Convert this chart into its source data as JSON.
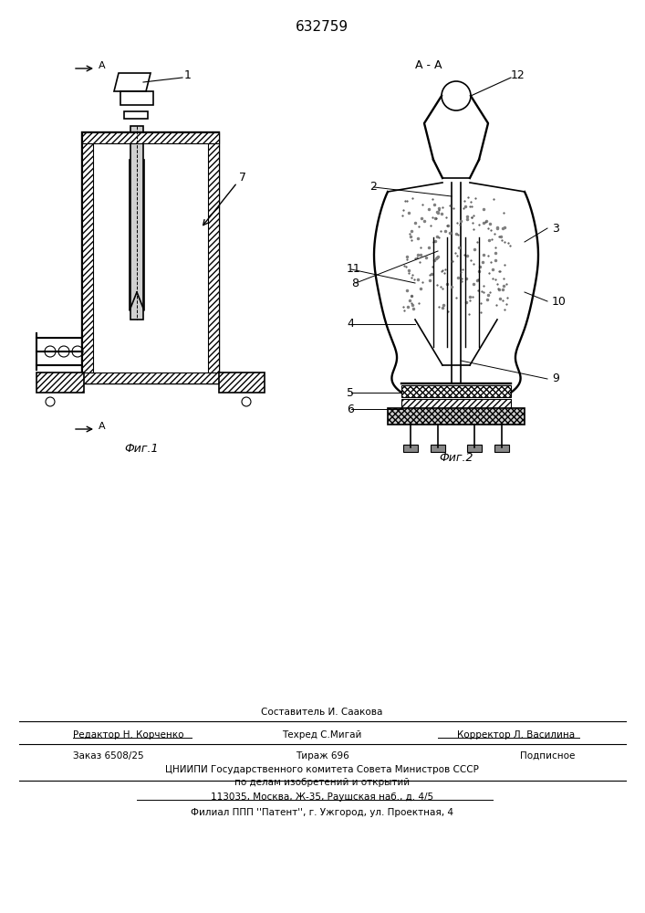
{
  "patent_number": "632759",
  "fig1_label": "Фиг.1",
  "fig2_label": "Фиг.2",
  "section_label": "А - А",
  "footer_line1_center": "Составитель И. Саакова",
  "footer_line2_left": "Редактор Н. Корченко",
  "footer_line2_center": "Техред С.Мигай",
  "footer_line2_right": "Корректор Л. Василина",
  "footer_line3_left": "Заказ 6508/25",
  "footer_line3_center": "Тираж 696",
  "footer_line3_right": "Подписное",
  "footer_line4": "ЦНИИПИ Государственного комитета Совета Министров СССР",
  "footer_line5": "по делам изобретений и открытий",
  "footer_line6": "113035, Москва, Ж-35, Раушская наб., д. 4/5",
  "footer_line7": "Филиал ППП ''Патент'', г. Ужгород, ул. Проектная, 4",
  "bg_color": "#ffffff",
  "line_color": "#000000",
  "hatch_color": "#000000",
  "label1": "1",
  "label2": "2",
  "label3": "3",
  "label4": "4",
  "label5": "5",
  "label6": "6",
  "label7": "7",
  "label8": "8",
  "label9": "9",
  "label10": "10",
  "label11": "11",
  "label12": "12"
}
